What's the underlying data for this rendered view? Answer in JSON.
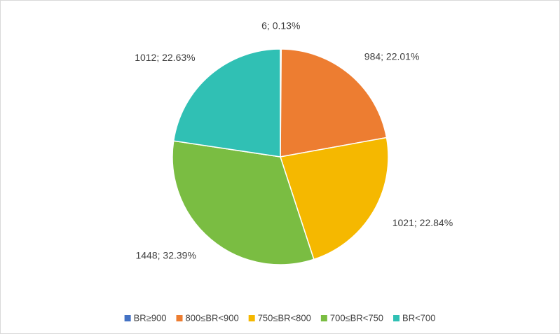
{
  "chart_data": {
    "type": "pie",
    "categories": [
      "BR≥900",
      "800≤BR<900",
      "750≤BR<800",
      "700≤BR<750",
      "BR<700"
    ],
    "values": [
      6,
      984,
      1021,
      1448,
      1012
    ],
    "value_labels": [
      "6; 0.13%",
      "984; 22.01%",
      "1021; 22.84%",
      "1448; 32.39%",
      "1012; 22.63%"
    ],
    "colors": [
      "#4472c4",
      "#ed7d31",
      "#f5b800",
      "#7abd42",
      "#30c0b4"
    ],
    "legend": "bottom"
  }
}
